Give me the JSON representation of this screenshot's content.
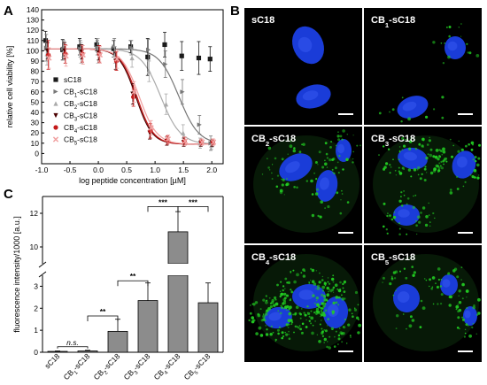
{
  "panel_labels": [
    "A",
    "B",
    "C"
  ],
  "colors": {
    "sC18": "#1a1a1a",
    "CB1-sC18": "#777777",
    "CB2-sC18": "#aaaaaa",
    "CB3-sC18": "#4a0000",
    "CB4-sC18": "#c41a1a",
    "CB5-sC18": "#f0a0a0",
    "bar": "#8c8c8c",
    "nucleus": "#1a3cd8",
    "green": "#22cc22"
  },
  "microscopy": {
    "labels": [
      {
        "base": "sC18",
        "sub": "",
        "suffix": ""
      },
      {
        "base": "CB",
        "sub": "1",
        "suffix": "-sC18"
      },
      {
        "base": "CB",
        "sub": "2",
        "suffix": "-sC18"
      },
      {
        "base": "CB",
        "sub": "3",
        "suffix": "-sC18"
      },
      {
        "base": "CB",
        "sub": "4",
        "suffix": "-sC18"
      },
      {
        "base": "CB",
        "sub": "5",
        "suffix": "-sC18"
      }
    ]
  },
  "chart_data": [
    {
      "type": "scatter",
      "panel": "A",
      "xlabel": "log peptide concentration [µM]",
      "ylabel": "relative cell viability [%]",
      "xlim": [
        -1.0,
        2.2
      ],
      "ylim": [
        -10,
        140
      ],
      "xticks": [
        "-1.0",
        "-0.5",
        "0.0",
        "0.5",
        "1.0",
        "1.5",
        "2.0"
      ],
      "yticks": [
        "0",
        "10",
        "20",
        "30",
        "40",
        "50",
        "60",
        "70",
        "80",
        "90",
        "100",
        "110",
        "120",
        "130",
        "140"
      ],
      "legend_position": "lower-left",
      "series": [
        {
          "name": "sC18",
          "color": "#1a1a1a",
          "marker": "square",
          "fit": false,
          "x": [
            -0.9,
            -0.6,
            -0.3,
            0.0,
            0.3,
            0.6,
            0.9,
            1.2,
            1.5,
            1.8,
            2.0
          ],
          "y": [
            110,
            101,
            104,
            106,
            102,
            104,
            94,
            106,
            95,
            93,
            92
          ],
          "err": [
            9,
            10,
            8,
            6,
            8,
            6,
            18,
            12,
            14,
            16,
            12
          ]
        },
        {
          "name": "CB1-sC18",
          "sub": "1",
          "color": "#777777",
          "marker": "tri-right",
          "fit": true,
          "ec50": 1.42,
          "hill": 2.5,
          "x": [
            -0.9,
            -0.6,
            -0.3,
            0.0,
            0.3,
            0.6,
            0.9,
            1.2,
            1.5,
            1.8,
            2.0
          ],
          "y": [
            103,
            102,
            102,
            103,
            104,
            103,
            101,
            87,
            60,
            28,
            10
          ],
          "err": [
            13,
            8,
            8,
            7,
            8,
            7,
            10,
            13,
            12,
            9,
            7
          ]
        },
        {
          "name": "CB2-sC18",
          "sub": "2",
          "color": "#aaaaaa",
          "marker": "tri-up",
          "fit": true,
          "ec50": 1.1,
          "hill": 2.5,
          "x": [
            -0.9,
            -0.6,
            -0.3,
            0.0,
            0.3,
            0.6,
            0.9,
            1.2,
            1.5,
            1.8,
            2.0
          ],
          "y": [
            97,
            100,
            98,
            100,
            96,
            93,
            80,
            48,
            20,
            10,
            8
          ],
          "err": [
            11,
            9,
            10,
            12,
            8,
            9,
            10,
            10,
            8,
            5,
            4
          ]
        },
        {
          "name": "CB3-sC18",
          "sub": "3",
          "color": "#4a0000",
          "marker": "tri-down",
          "fit": true,
          "ec50": 0.66,
          "hill": 3.0,
          "x": [
            -0.9,
            -0.6,
            -0.3,
            0.0,
            0.3,
            0.6,
            0.9,
            1.2,
            1.5,
            1.8,
            2.0
          ],
          "y": [
            100,
            100,
            99,
            98,
            90,
            58,
            20,
            12,
            11,
            10,
            10
          ],
          "err": [
            8,
            8,
            7,
            7,
            8,
            10,
            6,
            4,
            4,
            3,
            3
          ]
        },
        {
          "name": "CB4-sC18",
          "sub": "4",
          "color": "#c41a1a",
          "marker": "circle",
          "fit": true,
          "ec50": 0.68,
          "hill": 3.0,
          "x": [
            -0.9,
            -0.6,
            -0.3,
            0.0,
            0.3,
            0.6,
            0.9,
            1.2,
            1.5,
            1.8,
            2.0
          ],
          "y": [
            96,
            97,
            97,
            97,
            90,
            55,
            22,
            13,
            12,
            11,
            11
          ],
          "err": [
            14,
            9,
            8,
            8,
            9,
            9,
            7,
            4,
            4,
            3,
            3
          ]
        },
        {
          "name": "CB5-sC18",
          "sub": "5",
          "color": "#f0a0a0",
          "marker": "x",
          "fit": true,
          "ec50": 0.72,
          "hill": 2.8,
          "x": [
            -0.9,
            -0.6,
            -0.3,
            0.0,
            0.3,
            0.6,
            0.9,
            1.2,
            1.5,
            1.8,
            2.0
          ],
          "y": [
            93,
            95,
            96,
            96,
            92,
            60,
            25,
            14,
            12,
            11,
            11
          ],
          "err": [
            10,
            10,
            9,
            8,
            9,
            10,
            7,
            4,
            4,
            3,
            3
          ]
        }
      ]
    },
    {
      "type": "bar",
      "panel": "C",
      "ylabel": "fluorescence intensity/1000 [a.u.]",
      "axis_break": [
        3.5,
        9
      ],
      "lower_range": [
        0,
        3.5
      ],
      "upper_range": [
        9,
        13
      ],
      "yticks_lower": [
        "0",
        "1",
        "2",
        "3"
      ],
      "yticks_upper": [
        "10",
        "12"
      ],
      "categories": [
        {
          "base": "sC18",
          "sub": "",
          "suffix": ""
        },
        {
          "base": "CB",
          "sub": "1",
          "suffix": "-sC18"
        },
        {
          "base": "CB",
          "sub": "2",
          "suffix": "-sC18"
        },
        {
          "base": "CB",
          "sub": "3",
          "suffix": "-sC18"
        },
        {
          "base": "CB",
          "sub": "4",
          "suffix": "-sC18"
        },
        {
          "base": "CB",
          "sub": "5",
          "suffix": "-sC18"
        }
      ],
      "values": [
        0.04,
        0.06,
        0.95,
        2.35,
        10.9,
        2.25
      ],
      "errors": [
        0.02,
        0.03,
        0.55,
        0.8,
        1.2,
        0.9
      ],
      "significance": [
        {
          "from": 0,
          "to": 1,
          "label": "n.s.",
          "level": 0.25
        },
        {
          "from": 1,
          "to": 2,
          "label": "**",
          "level": 1.65
        },
        {
          "from": 2,
          "to": 3,
          "label": "**",
          "level": 3.25
        },
        {
          "from": 3,
          "to": 4,
          "label": "***",
          "level": 12.4
        },
        {
          "from": 4,
          "to": 5,
          "label": "***",
          "level": 12.4
        }
      ]
    }
  ]
}
